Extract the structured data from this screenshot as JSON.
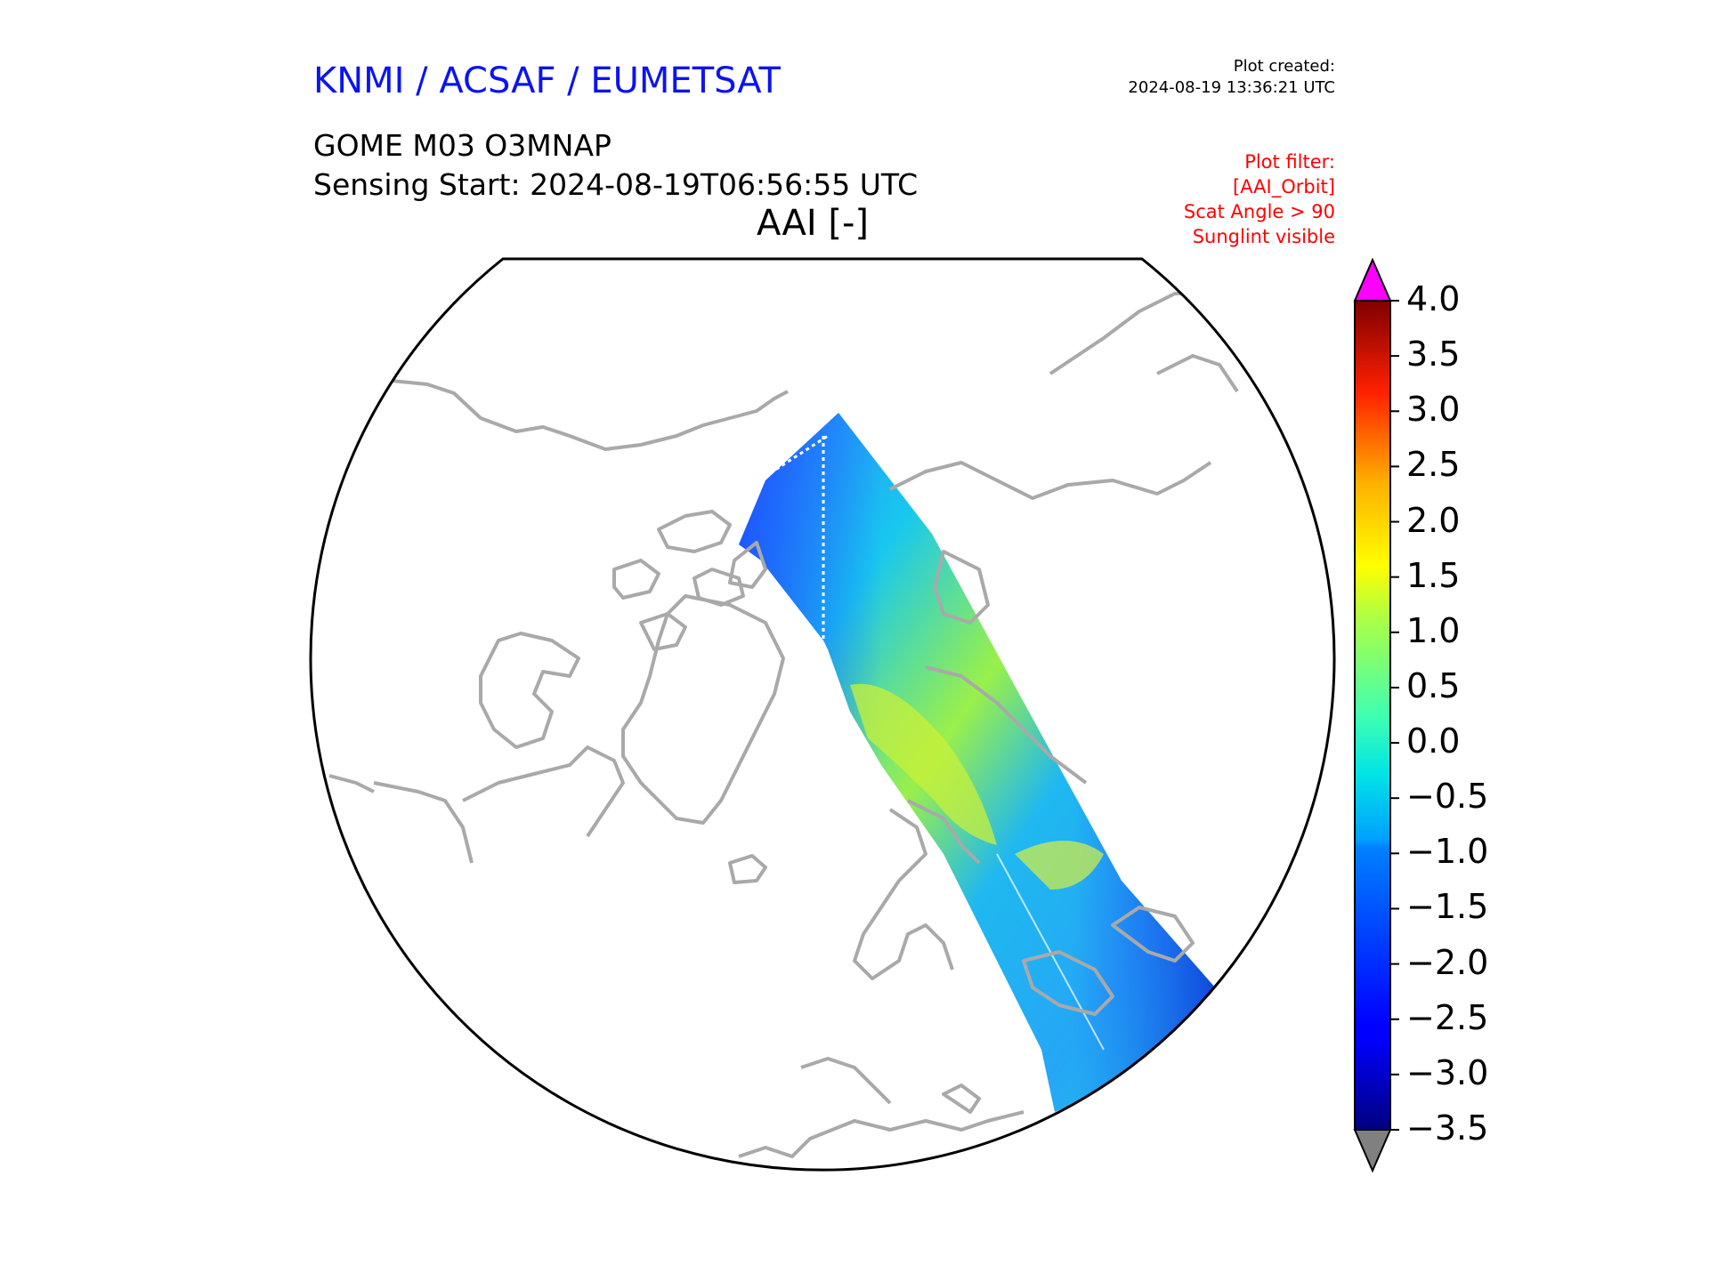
{
  "header": {
    "agency": "KNMI / ACSAF / EUMETSAT",
    "plot_created_label": "Plot created:",
    "plot_created_time": "2024-08-19 13:36:21 UTC",
    "product": "GOME M03 O3MNAP",
    "sensing_start": "Sensing Start: 2024-08-19T06:56:55 UTC",
    "map_title": "AAI [-]"
  },
  "filters": [
    "Plot filter:",
    "[AAI_Orbit]",
    "Scat Angle > 90",
    "Sunglint visible"
  ],
  "colorbar": {
    "ticks": [
      "4.0",
      "3.5",
      "3.0",
      "2.5",
      "2.0",
      "1.5",
      "1.0",
      "0.5",
      "0.0",
      "−0.5",
      "−1.0",
      "−1.5",
      "−2.0",
      "−2.5",
      "−3.0",
      "−3.5"
    ],
    "min": -3.5,
    "max": 4.0,
    "over_color": "#ff00ff",
    "under_color": "#808080",
    "colormap": "jet"
  },
  "colors": {
    "coastline": "#a9a9a9",
    "map_border": "#000000",
    "agency_text": "#0b14f0",
    "filter_text": "#ff0000"
  }
}
